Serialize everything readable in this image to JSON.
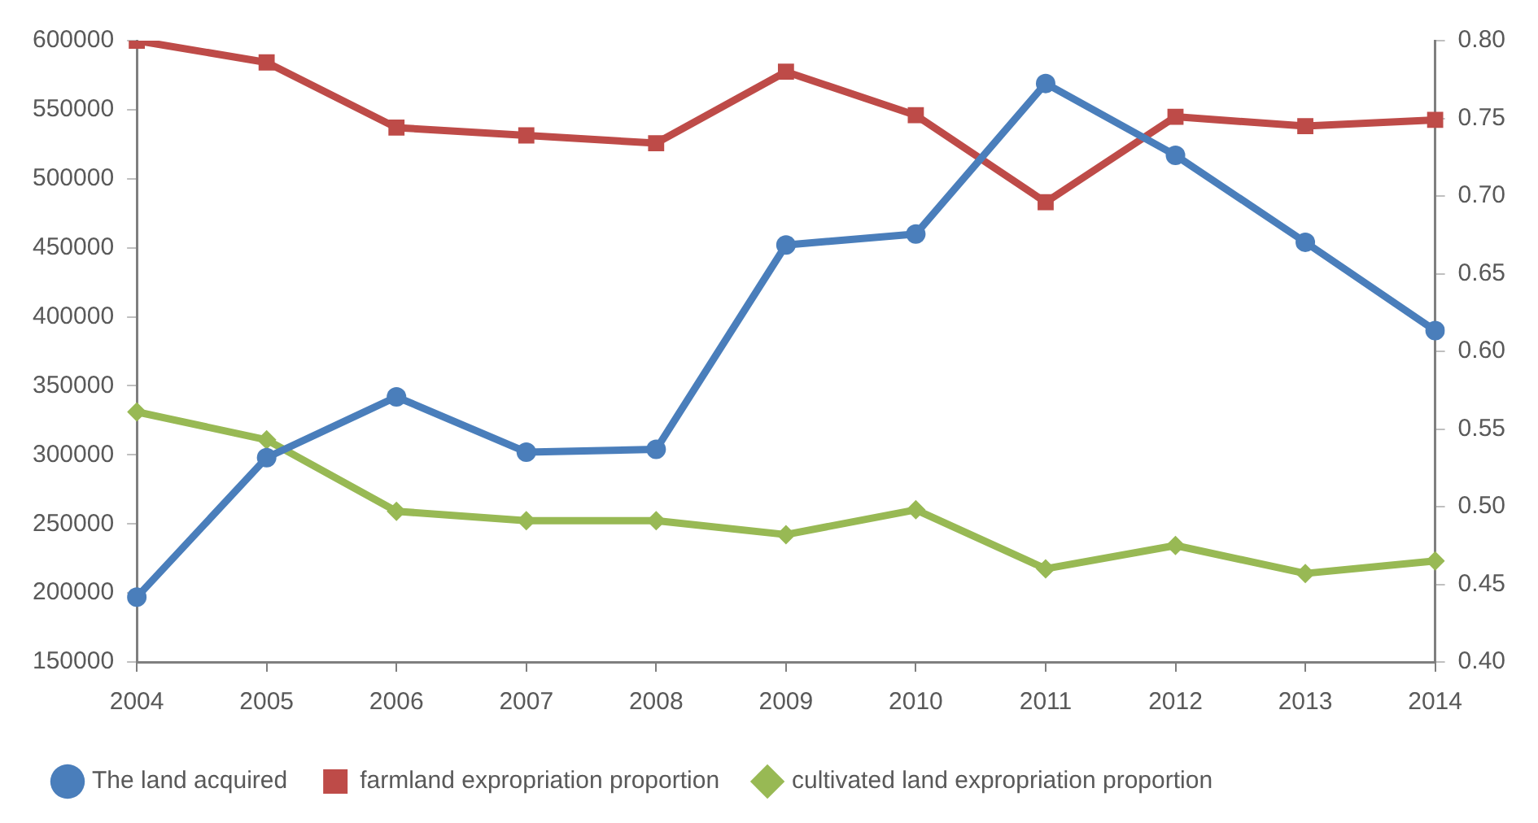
{
  "chart_data": {
    "type": "line",
    "categories": [
      "2004",
      "2005",
      "2006",
      "2007",
      "2008",
      "2009",
      "2010",
      "2011",
      "2012",
      "2013",
      "2014"
    ],
    "series": [
      {
        "name": "The land acquired",
        "color": "#4a7ebb",
        "marker": "circle",
        "values": [
          197000,
          298000,
          342000,
          302000,
          304000,
          452000,
          460000,
          569000,
          517000,
          454000,
          390000
        ]
      },
      {
        "name": "farmland expropriation proportion",
        "color": "#be4b48",
        "marker": "square",
        "axis": "y2",
        "values": [
          0.8,
          0.786,
          0.744,
          0.739,
          0.734,
          0.78,
          0.752,
          0.696,
          0.751,
          0.745,
          0.749
        ]
      },
      {
        "name": "cultivated land expropriation proportion",
        "color": "#98b954",
        "marker": "diamond",
        "axis": "y2",
        "values": [
          0.561,
          0.543,
          0.497,
          0.491,
          0.491,
          0.482,
          0.498,
          0.46,
          0.475,
          0.457,
          0.465
        ]
      }
    ],
    "ylim": [
      150000,
      600000
    ],
    "yticks": [
      150000,
      200000,
      250000,
      300000,
      350000,
      400000,
      450000,
      500000,
      550000,
      600000
    ],
    "y2lim": [
      0.4,
      0.8
    ],
    "y2ticks": [
      {
        "value": 0.4,
        "label": "0.40"
      },
      {
        "value": 0.45,
        "label": "0.45"
      },
      {
        "value": 0.5,
        "label": "0.50"
      },
      {
        "value": 0.55,
        "label": "0.55"
      },
      {
        "value": 0.6,
        "label": "0.60"
      },
      {
        "value": 0.65,
        "label": "0.65"
      },
      {
        "value": 0.7,
        "label": "0.70"
      },
      {
        "value": 0.75,
        "label": "0.75"
      },
      {
        "value": 0.8,
        "label": "0.80"
      }
    ],
    "grid": false,
    "legend": "bottom",
    "line_style": "solid"
  }
}
